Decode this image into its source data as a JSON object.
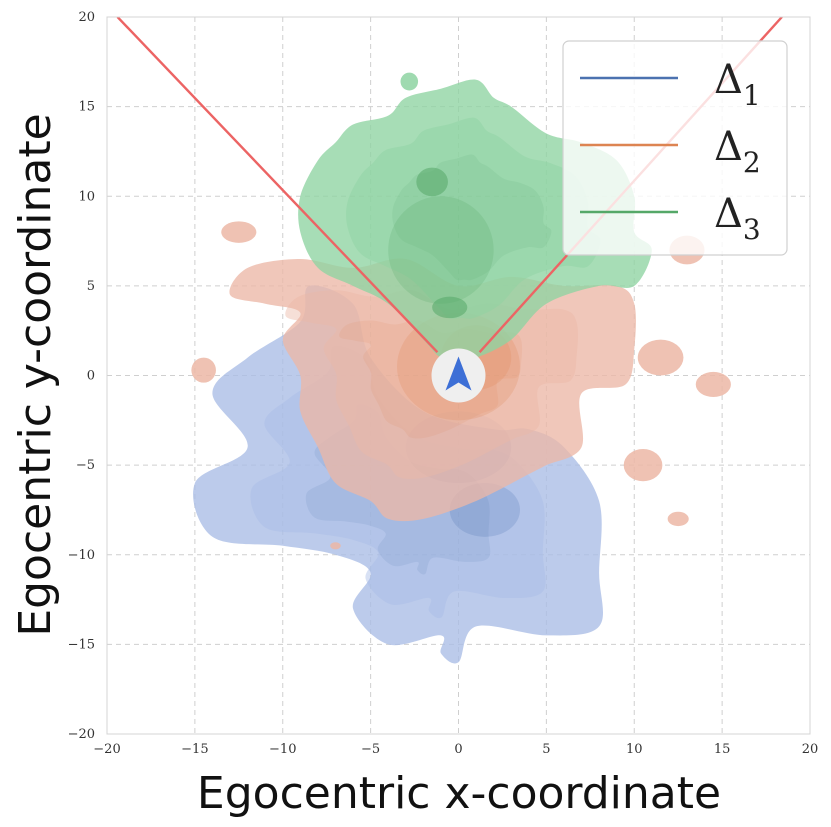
{
  "chart_data": {
    "type": "area",
    "xlabel": "Egocentric x-coordinate",
    "ylabel": "Egocentric y-coordinate",
    "xlim": [
      -20,
      20
    ],
    "ylim": [
      -20,
      20
    ],
    "xticks": [
      "−20",
      "−15",
      "−10",
      "−5",
      "0",
      "5",
      "10",
      "15",
      "20"
    ],
    "yticks": [
      "20",
      "15",
      "10",
      "5",
      "0",
      "−5",
      "−10",
      "−15",
      "−20"
    ],
    "grid": true,
    "legend_position": "top-right",
    "agent_marker": {
      "x": 0,
      "y": 0,
      "icon": "navigation-arrow-icon"
    },
    "view_cone": {
      "color": "#ec6464",
      "left_line": [
        [
          -19.4,
          20
        ],
        [
          -1.2,
          1.3
        ]
      ],
      "right_line": [
        [
          1.2,
          1.3
        ],
        [
          18.4,
          20
        ]
      ]
    },
    "series": [
      {
        "name": "Δ",
        "subscript": "1",
        "color": "#4c72b0",
        "fill": "#a9bce6",
        "outline": [
          [
            -8.5,
            5
          ],
          [
            -9,
            3
          ],
          [
            -12,
            1
          ],
          [
            -14,
            -1
          ],
          [
            -12,
            -4
          ],
          [
            -15,
            -6
          ],
          [
            -14,
            -9
          ],
          [
            -10,
            -9.5
          ],
          [
            -7,
            -10
          ],
          [
            -5,
            -11
          ],
          [
            -6,
            -13
          ],
          [
            -4,
            -15
          ],
          [
            -1,
            -14.5
          ],
          [
            -1,
            -15.5
          ],
          [
            0,
            -16
          ],
          [
            1,
            -14
          ],
          [
            5,
            -14.5
          ],
          [
            8,
            -14
          ],
          [
            8,
            -11
          ],
          [
            8,
            -7
          ],
          [
            6,
            -4
          ],
          [
            4,
            -3
          ],
          [
            2,
            -3
          ],
          [
            -2,
            -2
          ],
          [
            -5,
            1
          ],
          [
            -6,
            4
          ]
        ],
        "cores": [
          {
            "x": 0,
            "y": -4,
            "rx": 3,
            "ry": 2
          },
          {
            "x": 1.5,
            "y": -7.5,
            "rx": 2,
            "ry": 1.5
          }
        ]
      },
      {
        "name": "Δ",
        "subscript": "2",
        "color": "#dd8452",
        "fill": "#ecb7a6",
        "outline": [
          [
            -13,
            4.5
          ],
          [
            -12,
            6
          ],
          [
            -9,
            6.5
          ],
          [
            -6,
            6
          ],
          [
            -3,
            6.5
          ],
          [
            0,
            5
          ],
          [
            3,
            5.5
          ],
          [
            6,
            5
          ],
          [
            9,
            5
          ],
          [
            10,
            4
          ],
          [
            10,
            1.5
          ],
          [
            9.5,
            -0.5
          ],
          [
            7,
            -1
          ],
          [
            7,
            -4
          ],
          [
            5,
            -5
          ],
          [
            4,
            -5.5
          ],
          [
            1,
            -7
          ],
          [
            -2,
            -8
          ],
          [
            -4,
            -8
          ],
          [
            -5,
            -7
          ],
          [
            -7,
            -6
          ],
          [
            -8,
            -4
          ],
          [
            -9,
            -2
          ],
          [
            -9,
            0
          ],
          [
            -10,
            2
          ],
          [
            -9,
            3.5
          ],
          [
            -11,
            4
          ]
        ],
        "cores": [
          {
            "x": 0,
            "y": 0.5,
            "rx": 3.5,
            "ry": 3
          },
          {
            "x": 1,
            "y": 1,
            "rx": 2,
            "ry": 1.8
          }
        ],
        "islands": [
          {
            "x": -12.5,
            "y": 8,
            "rx": 1,
            "ry": 0.6
          },
          {
            "x": -14.5,
            "y": 0.3,
            "rx": 0.7,
            "ry": 0.7
          },
          {
            "x": 11.5,
            "y": 1,
            "rx": 1.3,
            "ry": 1
          },
          {
            "x": 14.5,
            "y": -0.5,
            "rx": 1,
            "ry": 0.7
          },
          {
            "x": 10.5,
            "y": -5,
            "rx": 1.1,
            "ry": 0.9
          },
          {
            "x": 12.5,
            "y": -8,
            "rx": 0.6,
            "ry": 0.4
          },
          {
            "x": 13,
            "y": 7,
            "rx": 1,
            "ry": 0.8
          },
          {
            "x": -7,
            "y": -9.5,
            "rx": 0.3,
            "ry": 0.2
          }
        ]
      },
      {
        "name": "Δ",
        "subscript": "3",
        "color": "#55a868",
        "fill": "#8ed3a2",
        "outline": [
          [
            -9,
            8
          ],
          [
            -9,
            10
          ],
          [
            -8,
            12
          ],
          [
            -7,
            13
          ],
          [
            -6,
            14
          ],
          [
            -4,
            14.5
          ],
          [
            -3,
            15.5
          ],
          [
            -1,
            16
          ],
          [
            1,
            16.5
          ],
          [
            2,
            15.5
          ],
          [
            3,
            15
          ],
          [
            5,
            13.5
          ],
          [
            7,
            13
          ],
          [
            9,
            12
          ],
          [
            10,
            10
          ],
          [
            10,
            8
          ],
          [
            11,
            7
          ],
          [
            10,
            5
          ],
          [
            8,
            5
          ],
          [
            5,
            4
          ],
          [
            3,
            2
          ],
          [
            1,
            1
          ],
          [
            0,
            1
          ],
          [
            -1,
            1
          ],
          [
            -2,
            2
          ],
          [
            -4,
            4
          ],
          [
            -6,
            5
          ],
          [
            -8,
            6
          ]
        ],
        "cores": [
          {
            "x": -1.5,
            "y": 10.8,
            "rx": 0.9,
            "ry": 0.8
          },
          {
            "x": -0.5,
            "y": 3.8,
            "rx": 1,
            "ry": 0.6
          },
          {
            "x": -1,
            "y": 7,
            "rx": 3,
            "ry": 3
          }
        ],
        "islands": [
          {
            "x": -2.8,
            "y": 16.4,
            "rx": 0.5,
            "ry": 0.5
          }
        ]
      }
    ]
  }
}
